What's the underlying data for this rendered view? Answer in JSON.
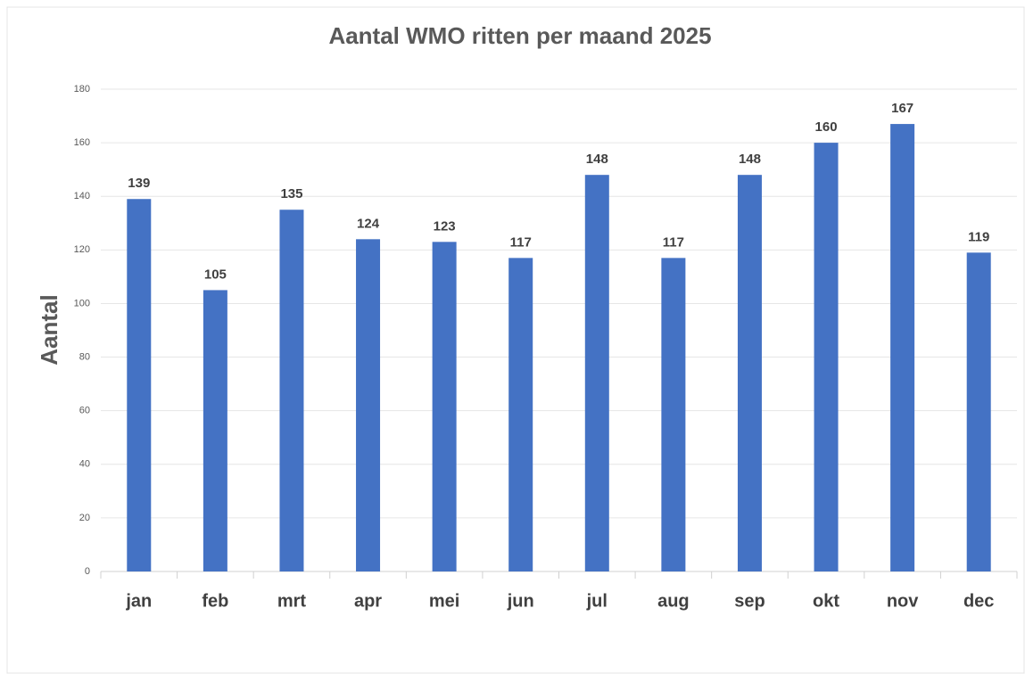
{
  "chart_data": {
    "type": "bar",
    "title": "Aantal WMO ritten per maand 2025",
    "y_label": "Aantal",
    "categories": [
      "jan",
      "feb",
      "mrt",
      "apr",
      "mei",
      "jun",
      "jul",
      "aug",
      "sep",
      "okt",
      "nov",
      "dec"
    ],
    "values": [
      139,
      105,
      135,
      124,
      123,
      117,
      148,
      117,
      148,
      160,
      167,
      119
    ],
    "color": "#4472c4",
    "ylim": [
      0,
      180
    ],
    "yticks": [
      0,
      20,
      40,
      60,
      80,
      100,
      120,
      140,
      160,
      180
    ],
    "grid": true
  }
}
